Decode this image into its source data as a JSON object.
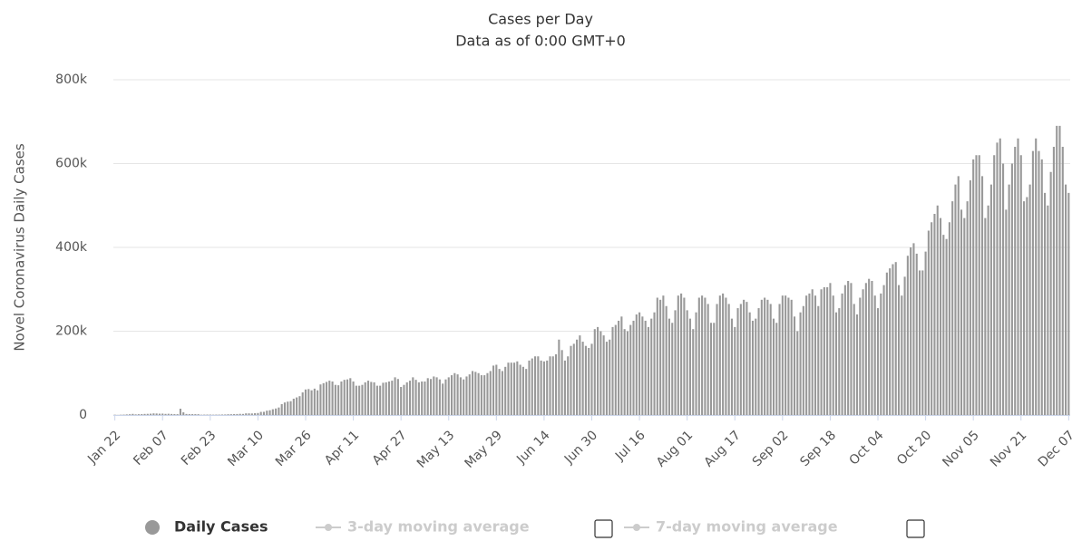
{
  "chart_data": {
    "type": "bar",
    "title": "Cases per Day",
    "subtitle": "Data as of 0:00 GMT+0",
    "y_label": "Novel Coronavirus Daily Cases",
    "ylim": [
      0,
      800000
    ],
    "yticks": [
      {
        "value": 0,
        "label": "0"
      },
      {
        "value": 200000,
        "label": "200k"
      },
      {
        "value": 400000,
        "label": "400k"
      },
      {
        "value": 600000,
        "label": "600k"
      },
      {
        "value": 800000,
        "label": "800k"
      }
    ],
    "grid": true,
    "categories": [
      "Jan 22",
      null,
      null,
      null,
      null,
      null,
      null,
      null,
      null,
      null,
      null,
      null,
      null,
      null,
      null,
      null,
      "Feb 07",
      null,
      null,
      null,
      null,
      null,
      null,
      null,
      null,
      null,
      null,
      null,
      null,
      null,
      null,
      null,
      "Feb 23",
      null,
      null,
      null,
      null,
      null,
      null,
      null,
      null,
      null,
      null,
      null,
      null,
      null,
      null,
      null,
      "Mar 10",
      null,
      null,
      null,
      null,
      null,
      null,
      null,
      null,
      null,
      null,
      null,
      null,
      null,
      null,
      null,
      "Mar 26",
      null,
      null,
      null,
      null,
      null,
      null,
      null,
      null,
      null,
      null,
      null,
      null,
      null,
      null,
      null,
      "Apr 11",
      null,
      null,
      null,
      null,
      null,
      null,
      null,
      null,
      null,
      null,
      null,
      null,
      null,
      null,
      null,
      "Apr 27",
      null,
      null,
      null,
      null,
      null,
      null,
      null,
      null,
      null,
      null,
      null,
      null,
      null,
      null,
      null,
      "May 13",
      null,
      null,
      null,
      null,
      null,
      null,
      null,
      null,
      null,
      null,
      null,
      null,
      null,
      null,
      null,
      "May 29",
      null,
      null,
      null,
      null,
      null,
      null,
      null,
      null,
      null,
      null,
      null,
      null,
      null,
      null,
      null,
      "Jun 14",
      null,
      null,
      null,
      null,
      null,
      null,
      null,
      null,
      null,
      null,
      null,
      null,
      null,
      null,
      null,
      "Jun 30",
      null,
      null,
      null,
      null,
      null,
      null,
      null,
      null,
      null,
      null,
      null,
      null,
      null,
      null,
      null,
      "Jul 16",
      null,
      null,
      null,
      null,
      null,
      null,
      null,
      null,
      null,
      null,
      null,
      null,
      null,
      null,
      null,
      "Aug 01",
      null,
      null,
      null,
      null,
      null,
      null,
      null,
      null,
      null,
      null,
      null,
      null,
      null,
      null,
      null,
      "Aug 17",
      null,
      null,
      null,
      null,
      null,
      null,
      null,
      null,
      null,
      null,
      null,
      null,
      null,
      null,
      null,
      "Sep 02",
      null,
      null,
      null,
      null,
      null,
      null,
      null,
      null,
      null,
      null,
      null,
      null,
      null,
      null,
      null,
      "Sep 18",
      null,
      null,
      null,
      null,
      null,
      null,
      null,
      null,
      null,
      null,
      null,
      null,
      null,
      null,
      null,
      "Oct 04",
      null,
      null,
      null,
      null,
      null,
      null,
      null,
      null,
      null,
      null,
      null,
      null,
      null,
      null,
      null,
      "Oct 20",
      null,
      null,
      null,
      null,
      null,
      null,
      null,
      null,
      null,
      null,
      null,
      null,
      null,
      null,
      null,
      "Nov 05",
      null,
      null,
      null,
      null,
      null,
      null,
      null,
      null,
      null,
      null,
      null,
      null,
      null,
      null,
      null,
      "Nov 21",
      null,
      null,
      null,
      null,
      null,
      null,
      null,
      null,
      null,
      null,
      null,
      null,
      null,
      null,
      null,
      "Dec 07"
    ],
    "series": [
      {
        "name": "Daily Cases",
        "color": "#999999",
        "values": [
          600,
          100,
          600,
          900,
          1400,
          1800,
          2700,
          1500,
          1900,
          2100,
          2600,
          2800,
          3200,
          3900,
          3700,
          3200,
          3400,
          2700,
          3000,
          2500,
          2100,
          2000,
          15100,
          6500,
          2500,
          2100,
          2100,
          2000,
          1900,
          600,
          900,
          1000,
          1000,
          700,
          900,
          900,
          1200,
          1300,
          1800,
          1900,
          2300,
          2400,
          2800,
          2600,
          4000,
          4000,
          3800,
          4500,
          4800,
          7500,
          7700,
          10400,
          11400,
          13800,
          15600,
          18000,
          26000,
          30000,
          32000,
          33000,
          39000,
          42000,
          45000,
          54000,
          61000,
          62000,
          59000,
          63000,
          59000,
          73000,
          76000,
          79000,
          82000,
          80000,
          72000,
          71000,
          80000,
          84000,
          85000,
          88000,
          80000,
          70000,
          70000,
          72000,
          78000,
          82000,
          79000,
          78000,
          70000,
          70000,
          77000,
          78000,
          80000,
          82000,
          90000,
          86000,
          67000,
          72000,
          78000,
          82000,
          90000,
          84000,
          78000,
          80000,
          80000,
          88000,
          86000,
          92000,
          90000,
          85000,
          75000,
          85000,
          90000,
          95000,
          100000,
          97000,
          90000,
          85000,
          92000,
          97000,
          105000,
          103000,
          100000,
          95000,
          95000,
          100000,
          105000,
          118000,
          120000,
          110000,
          105000,
          115000,
          125000,
          125000,
          125000,
          128000,
          120000,
          115000,
          110000,
          130000,
          135000,
          140000,
          140000,
          130000,
          128000,
          130000,
          140000,
          140000,
          145000,
          180000,
          155000,
          130000,
          140000,
          165000,
          170000,
          180000,
          190000,
          175000,
          165000,
          160000,
          170000,
          205000,
          210000,
          200000,
          190000,
          175000,
          180000,
          210000,
          215000,
          225000,
          235000,
          205000,
          200000,
          215000,
          225000,
          240000,
          245000,
          235000,
          225000,
          210000,
          230000,
          245000,
          280000,
          275000,
          285000,
          260000,
          230000,
          220000,
          250000,
          285000,
          290000,
          280000,
          250000,
          230000,
          205000,
          245000,
          280000,
          285000,
          280000,
          265000,
          220000,
          220000,
          265000,
          285000,
          290000,
          280000,
          265000,
          230000,
          210000,
          255000,
          265000,
          275000,
          270000,
          245000,
          225000,
          230000,
          255000,
          275000,
          280000,
          275000,
          265000,
          230000,
          220000,
          265000,
          285000,
          285000,
          280000,
          275000,
          235000,
          200000,
          245000,
          260000,
          285000,
          290000,
          300000,
          285000,
          260000,
          300000,
          305000,
          305000,
          315000,
          285000,
          245000,
          255000,
          290000,
          310000,
          320000,
          315000,
          265000,
          240000,
          280000,
          300000,
          315000,
          325000,
          320000,
          285000,
          255000,
          290000,
          310000,
          340000,
          350000,
          360000,
          365000,
          310000,
          285000,
          330000,
          380000,
          400000,
          410000,
          385000,
          345000,
          345000,
          390000,
          440000,
          460000,
          480000,
          500000,
          470000,
          430000,
          420000,
          460000,
          510000,
          550000,
          570000,
          490000,
          470000,
          510000,
          560000,
          610000,
          620000,
          620000,
          570000,
          470000,
          500000,
          550000,
          620000,
          650000,
          660000,
          600000,
          490000,
          550000,
          600000,
          640000,
          660000,
          620000,
          510000,
          520000,
          550000,
          630000,
          660000,
          630000,
          610000,
          530000,
          500000,
          580000,
          640000,
          690000,
          690000,
          640000,
          550000,
          530000
        ]
      }
    ],
    "legend_extra": [
      {
        "name": "3-day moving average",
        "color": "#cccccc"
      },
      {
        "name": "7-day moving average",
        "color": "#cccccc"
      }
    ]
  }
}
